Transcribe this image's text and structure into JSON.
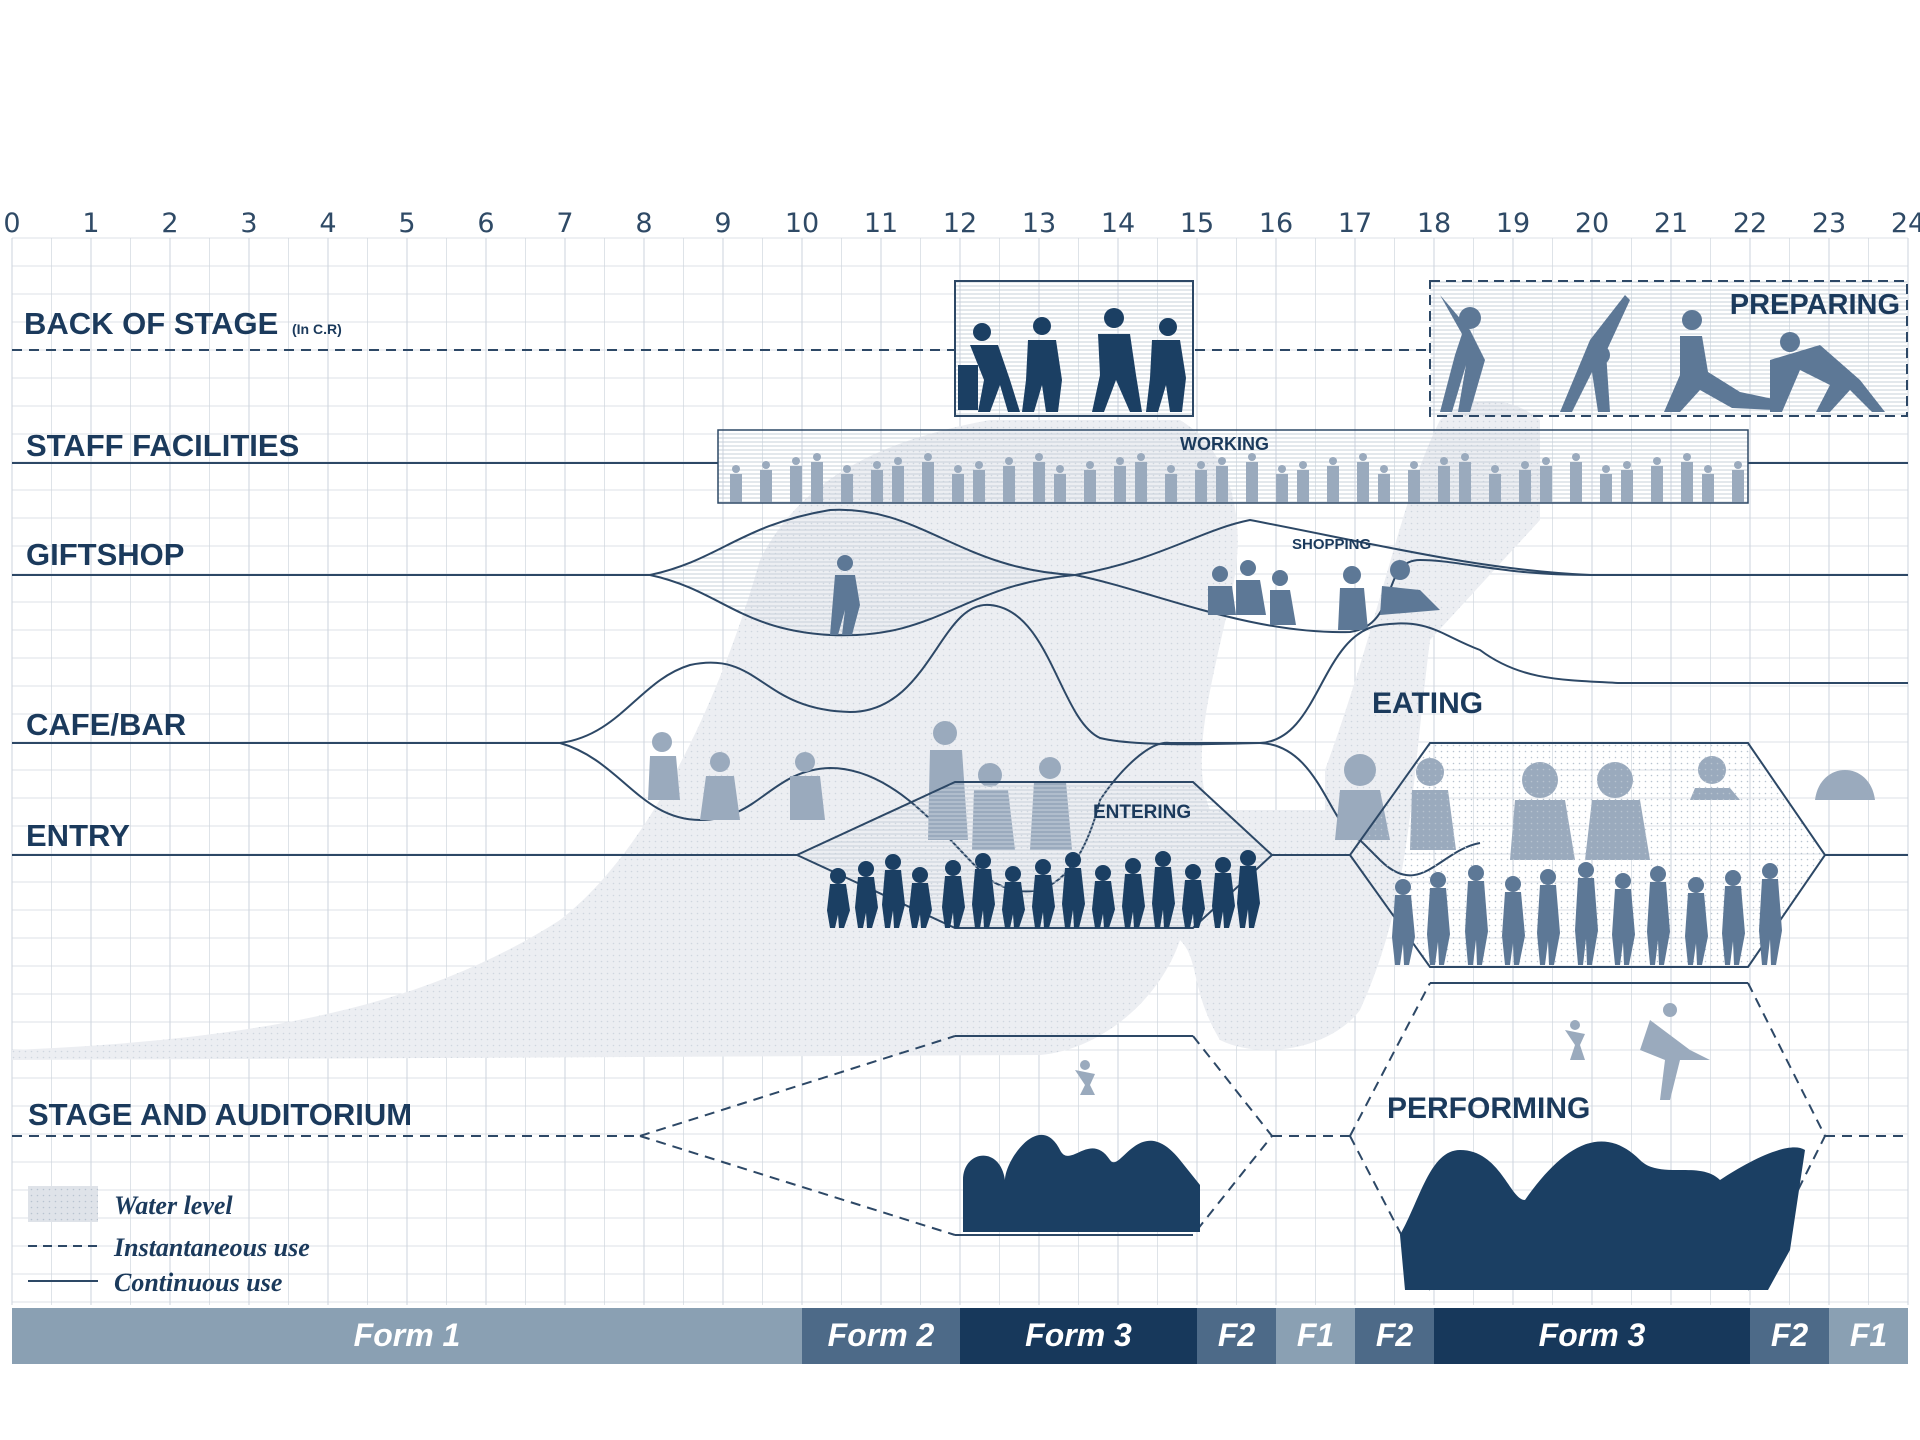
{
  "hours": [
    "0",
    "1",
    "2",
    "3",
    "4",
    "5",
    "6",
    "7",
    "8",
    "9",
    "10",
    "11",
    "12",
    "13",
    "14",
    "15",
    "16",
    "17",
    "18",
    "19",
    "20",
    "21",
    "22",
    "23",
    "24"
  ],
  "rows": [
    {
      "label": "BACK OF STAGE",
      "sub": "(In C.R)"
    },
    {
      "label": "STAFF FACILITIES"
    },
    {
      "label": "GIFTSHOP"
    },
    {
      "label": "CAFE/BAR"
    },
    {
      "label": "ENTRY"
    },
    {
      "label": "STAGE AND AUDITORIUM"
    }
  ],
  "activities": {
    "preparing": "PREPARING",
    "working": "WORKING",
    "shopping": "SHOPPING",
    "eating": "EATING",
    "entering": "ENTERING",
    "performing": "PERFORMING"
  },
  "legend": [
    {
      "key": "water",
      "label": "Water level"
    },
    {
      "key": "dashed",
      "label": "Instantaneous use"
    },
    {
      "key": "solid",
      "label": "Continuous use"
    }
  ],
  "forms": [
    {
      "label": "Form 1",
      "start": 0,
      "end": 10,
      "color": "#8aa0b3"
    },
    {
      "label": "Form 2",
      "start": 10,
      "end": 12,
      "color": "#4d6a88"
    },
    {
      "label": "Form 3",
      "start": 12,
      "end": 15,
      "color": "#17385b"
    },
    {
      "label": "F2",
      "start": 15,
      "end": 16,
      "color": "#4d6a88"
    },
    {
      "label": "F1",
      "start": 16,
      "end": 17,
      "color": "#8aa0b3"
    },
    {
      "label": "F2",
      "start": 17,
      "end": 18,
      "color": "#4d6a88"
    },
    {
      "label": "Form 3",
      "start": 18,
      "end": 22,
      "color": "#17385b"
    },
    {
      "label": "F2",
      "start": 22,
      "end": 23,
      "color": "#4d6a88"
    },
    {
      "label": "F1",
      "start": 23,
      "end": 24,
      "color": "#8aa0b3"
    }
  ],
  "colors": {
    "navy": "#1b3a5c",
    "line": "#2d4866",
    "grid": "#c9d2dc",
    "water": "#eceef2"
  }
}
